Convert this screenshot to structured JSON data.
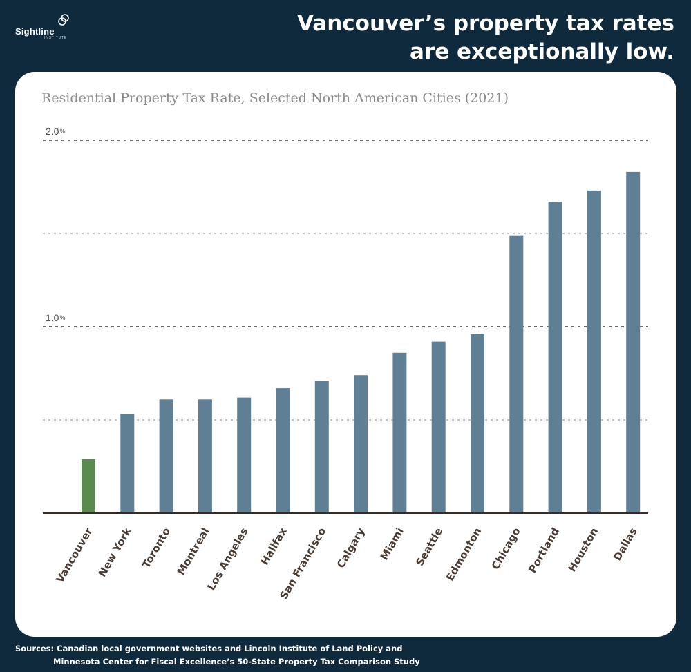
{
  "brand": {
    "name": "Sightline",
    "sub": "INSTITUTE"
  },
  "headline": {
    "line1": "Vancouver’s property tax rates",
    "line2": "are exceptionally low."
  },
  "sources": {
    "line1": "Sources: Canadian local government websites and Lincoln Institute of Land Policy and",
    "line2": "Minnesota Center for Fiscal Excellence’s 50-State Property Tax Comparison Study"
  },
  "colors": {
    "background": "#0f2a3d",
    "bar": "#5e7f94",
    "highlight": "#5b8a4e",
    "axis": "#3a2a22"
  },
  "chart_data": {
    "type": "bar",
    "title": "Residential Property Tax Rate, Selected North American Cities (2021)",
    "xlabel": "",
    "ylabel": "",
    "ylim": [
      0,
      2.0
    ],
    "yticks": [
      0.5,
      1.0,
      1.5,
      2.0
    ],
    "ytick_labels": {
      "1.0": "1.0",
      "2.0": "2.0"
    },
    "ytick_unit": "%",
    "highlight_category": "Vancouver",
    "categories": [
      "Vancouver",
      "New York",
      "Toronto",
      "Montreal",
      "Los Angeles",
      "Halifax",
      "San Francisco",
      "Calgary",
      "Miami",
      "Seattle",
      "Edmonton",
      "Chicago",
      "Portland",
      "Houston",
      "Dallas"
    ],
    "values": [
      0.29,
      0.53,
      0.61,
      0.61,
      0.62,
      0.67,
      0.71,
      0.74,
      0.86,
      0.92,
      0.96,
      1.49,
      1.67,
      1.73,
      1.83
    ]
  }
}
